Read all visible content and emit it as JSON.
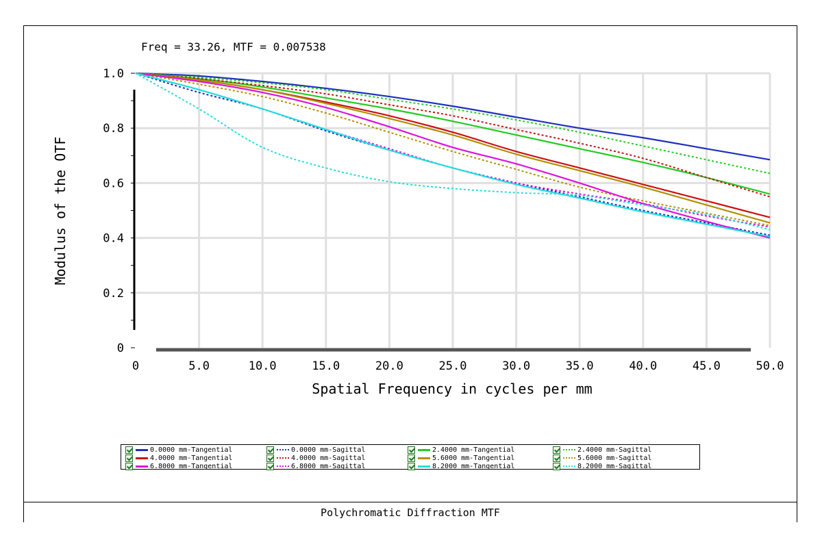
{
  "header": {
    "readout": "Freq = 33.26, MTF = 0.007538"
  },
  "footer": {
    "title": "Polychromatic Diffraction MTF"
  },
  "chart_data": {
    "type": "line",
    "xlabel": "Spatial Frequency in cycles per mm",
    "ylabel": "Modulus of the OTF",
    "xlim": [
      0,
      50
    ],
    "ylim": [
      0,
      1
    ],
    "x_ticks": [
      "0",
      "5.0",
      "10.0",
      "15.0",
      "20.0",
      "25.0",
      "30.0",
      "35.0",
      "40.0",
      "45.0",
      "50.0"
    ],
    "y_ticks": [
      "0",
      "0.2",
      "0.4",
      "0.6",
      "0.8",
      "1.0"
    ],
    "grid": true,
    "legend_position": "bottom",
    "x": [
      0,
      5,
      10,
      15,
      20,
      25,
      30,
      35,
      40,
      45,
      50
    ],
    "series": [
      {
        "name": "0.0000 mm-Tangential",
        "color": "#1f2fbf",
        "dash": "solid",
        "values": [
          1.0,
          0.99,
          0.97,
          0.945,
          0.915,
          0.88,
          0.84,
          0.8,
          0.765,
          0.725,
          0.685
        ]
      },
      {
        "name": "0.0000 mm-Sagittal",
        "color": "#1f2fbf",
        "dash": "dotted",
        "values": [
          1.0,
          0.93,
          0.87,
          0.79,
          0.72,
          0.655,
          0.6,
          0.55,
          0.5,
          0.455,
          0.41
        ]
      },
      {
        "name": "2.4000 mm-Tangential",
        "color": "#22cc22",
        "dash": "solid",
        "values": [
          1.0,
          0.98,
          0.95,
          0.91,
          0.87,
          0.825,
          0.775,
          0.725,
          0.675,
          0.62,
          0.56
        ]
      },
      {
        "name": "2.4000 mm-Sagittal",
        "color": "#22cc22",
        "dash": "dotted",
        "values": [
          1.0,
          0.985,
          0.965,
          0.94,
          0.905,
          0.87,
          0.83,
          0.785,
          0.735,
          0.685,
          0.635
        ]
      },
      {
        "name": "4.0000 mm-Tangential",
        "color": "#cc1111",
        "dash": "solid",
        "values": [
          1.0,
          0.975,
          0.94,
          0.895,
          0.845,
          0.785,
          0.715,
          0.655,
          0.595,
          0.535,
          0.475
        ]
      },
      {
        "name": "4.0000 mm-Sagittal",
        "color": "#cc1111",
        "dash": "dotted",
        "values": [
          1.0,
          0.98,
          0.955,
          0.925,
          0.885,
          0.845,
          0.795,
          0.745,
          0.69,
          0.62,
          0.55
        ]
      },
      {
        "name": "5.6000 mm-Tangential",
        "color": "#b38f00",
        "dash": "solid",
        "values": [
          1.0,
          0.975,
          0.94,
          0.89,
          0.835,
          0.775,
          0.705,
          0.645,
          0.585,
          0.52,
          0.455
        ]
      },
      {
        "name": "5.6000 mm-Sagittal",
        "color": "#b38f00",
        "dash": "dotted",
        "values": [
          1.0,
          0.96,
          0.915,
          0.855,
          0.785,
          0.715,
          0.65,
          0.585,
          0.535,
          0.49,
          0.445
        ]
      },
      {
        "name": "6.8000 mm-Tangential",
        "color": "#dd11dd",
        "dash": "solid",
        "values": [
          1.0,
          0.97,
          0.93,
          0.875,
          0.805,
          0.73,
          0.67,
          0.6,
          0.525,
          0.46,
          0.4
        ]
      },
      {
        "name": "6.8000 mm-Sagittal",
        "color": "#dd11dd",
        "dash": "dotted",
        "values": [
          1.0,
          0.94,
          0.87,
          0.795,
          0.725,
          0.655,
          0.6,
          0.56,
          0.525,
          0.48,
          0.44
        ]
      },
      {
        "name": "8.2000 mm-Tangential",
        "color": "#22dddd",
        "dash": "solid",
        "values": [
          1.0,
          0.94,
          0.87,
          0.795,
          0.72,
          0.655,
          0.595,
          0.545,
          0.495,
          0.45,
          0.405
        ]
      },
      {
        "name": "8.2000 mm-Sagittal",
        "color": "#22dddd",
        "dash": "dotted",
        "values": [
          1.0,
          0.87,
          0.73,
          0.655,
          0.605,
          0.58,
          0.565,
          0.555,
          0.52,
          0.485,
          0.43
        ]
      }
    ]
  }
}
